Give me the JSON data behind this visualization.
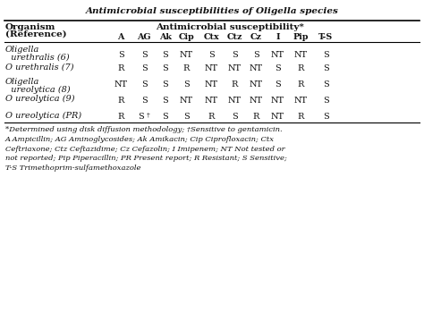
{
  "title": "Antimicrobial susceptibilities of Oligella species",
  "col_header_row1": "Antimicrobial susceptibility*",
  "col_header_row2": [
    "A",
    "AG",
    "Ak",
    "Cip",
    "Ctx",
    "Ctz",
    "Cz",
    "I",
    "Pip",
    "T-S"
  ],
  "data": [
    [
      "S",
      "S",
      "S",
      "NT",
      "S",
      "S",
      "S",
      "NT",
      "NT",
      "S"
    ],
    [
      "R",
      "S",
      "S",
      "R",
      "NT",
      "NT",
      "NT",
      "S",
      "R",
      "S"
    ],
    [
      "NT",
      "S",
      "S",
      "S",
      "NT",
      "R",
      "NT",
      "S",
      "R",
      "S"
    ],
    [
      "R",
      "S",
      "S",
      "NT",
      "NT",
      "NT",
      "NT",
      "NT",
      "NT",
      "S"
    ],
    [
      "R",
      "S†",
      "S",
      "S",
      "R",
      "S",
      "R",
      "NT",
      "R",
      "S"
    ]
  ],
  "footnotes": [
    "*Determined using disk diffusion methodology; †Sensitive to gentamicin.",
    "A Ampicillin; AG Aminoglycosides; Ak Amikacin; Cip Ciprofloxacin; Ctx",
    "Ceftriaxone; Ctz Ceftazidime; Cz Cefazolin; I Imipenem; NT Not tested or",
    "not reported; Pip Piperacillin; PR Present report; R Resistant; S Sensitive;",
    "T-S Trimethoprim-sulfamethoxazole"
  ]
}
